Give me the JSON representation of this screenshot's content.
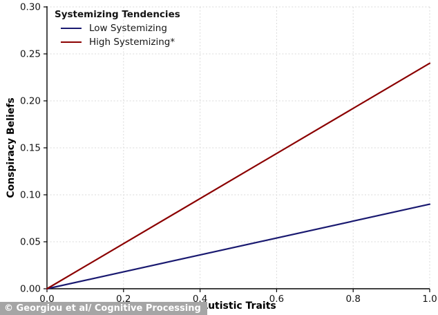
{
  "chart_data": {
    "type": "line",
    "title": "",
    "xlabel": "Autistic Traits",
    "ylabel": "Conspiracy Beliefs",
    "xlim": [
      0.0,
      1.0
    ],
    "ylim": [
      0.0,
      0.3
    ],
    "xticks": [
      0.0,
      0.2,
      0.4,
      0.6,
      0.8,
      1.0
    ],
    "xtick_labels": [
      "0.0",
      "0.2",
      "0.4",
      "0.6",
      "0.8",
      "1.0"
    ],
    "yticks": [
      0.0,
      0.05,
      0.1,
      0.15,
      0.2,
      0.25,
      0.3
    ],
    "ytick_labels": [
      "0.00",
      "0.05",
      "0.10",
      "0.15",
      "0.20",
      "0.25",
      "0.30"
    ],
    "grid": true,
    "grid_style": "dashed",
    "legend": {
      "title": "Systemizing Tendencies",
      "position": "upper-left"
    },
    "series": [
      {
        "name": "Low Systemizing",
        "color": "#191970",
        "x": [
          0.0,
          1.0
        ],
        "y": [
          0.0,
          0.09
        ]
      },
      {
        "name": "High Systemizing*",
        "color": "#8b0000",
        "x": [
          0.0,
          1.0
        ],
        "y": [
          0.0,
          0.24
        ]
      }
    ]
  },
  "watermark": {
    "text": "© Georgiou et al/ Cognitive Processing",
    "bg": "#a5a5a5",
    "fg": "#ffffff"
  }
}
